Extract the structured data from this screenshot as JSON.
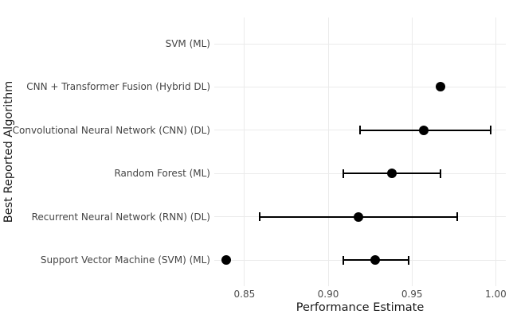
{
  "chart_data": {
    "type": "scatter",
    "subtype": "forest-dot-plot-with-error-bars",
    "title": "",
    "xlabel": "Performance Estimate",
    "ylabel": "Best Reported Algorithm",
    "xlim": [
      0.832,
      1.006
    ],
    "xticks": [
      {
        "value": 0.85,
        "label": "0.85"
      },
      {
        "value": 0.9,
        "label": "0.90"
      },
      {
        "value": 0.95,
        "label": "0.95"
      },
      {
        "value": 1.0,
        "label": "1.00"
      }
    ],
    "grid": "major-only",
    "legend": "none",
    "categories_top_to_bottom": [
      "SVM (ML)",
      "CNN + Transformer Fusion (Hybrid DL)",
      "Convolutional Neural Network (CNN) (DL)",
      "Random Forest (ML)",
      "Recurrent Neural Network (RNN) (DL)",
      "Support Vector Machine (SVM) (ML)"
    ],
    "rows": [
      {
        "label": "SVM (ML)",
        "points": [],
        "ci": null
      },
      {
        "label": "CNN + Transformer Fusion (Hybrid DL)",
        "points": [
          0.967
        ],
        "ci": null
      },
      {
        "label": "Convolutional Neural Network (CNN) (DL)",
        "points": [
          0.957
        ],
        "ci": [
          0.919,
          0.997
        ]
      },
      {
        "label": "Random Forest (ML)",
        "points": [
          0.938
        ],
        "ci": [
          0.909,
          0.967
        ]
      },
      {
        "label": "Recurrent Neural Network (RNN) (DL)",
        "points": [
          0.918
        ],
        "ci": [
          0.859,
          0.977
        ]
      },
      {
        "label": "Support Vector Machine (SVM) (ML)",
        "points": [
          0.839,
          0.928
        ],
        "ci": [
          0.909,
          0.948
        ]
      }
    ],
    "colors": {
      "point": "#000000",
      "error_bar": "#000000",
      "grid": "#ebebeb",
      "axis_text": "#4d4d4d",
      "category_text": "#444444",
      "axis_title": "#1a1a1a",
      "background": "#ffffff"
    }
  }
}
